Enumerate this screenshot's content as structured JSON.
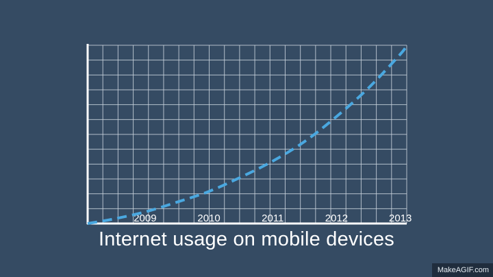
{
  "chart_data": {
    "type": "line",
    "title": "Internet usage on mobile devices",
    "xlabel": "",
    "ylabel": "",
    "x_ticks": [
      "2009",
      "2010",
      "2011",
      "2012",
      "2013"
    ],
    "xlim": [
      2008.1,
      2013.1
    ],
    "ylim": [
      0,
      100
    ],
    "grid": true,
    "series": [
      {
        "x": [
          2008.1,
          2008.5,
          2009.0,
          2009.5,
          2010.0,
          2010.5,
          2011.0,
          2011.5,
          2012.0,
          2012.5,
          2013.0,
          2013.1
        ],
        "y": [
          0,
          2.5,
          6.5,
          12,
          18,
          26,
          35,
          46,
          60,
          76,
          95,
          100
        ],
        "style": "dashed"
      }
    ]
  },
  "colors": {
    "background": "#354b63",
    "grid": "#c9d3dd",
    "axis": "#ffffff",
    "line": "#4aa8e0",
    "text": "#ffffff"
  },
  "watermark": "MakeAGIF.com"
}
